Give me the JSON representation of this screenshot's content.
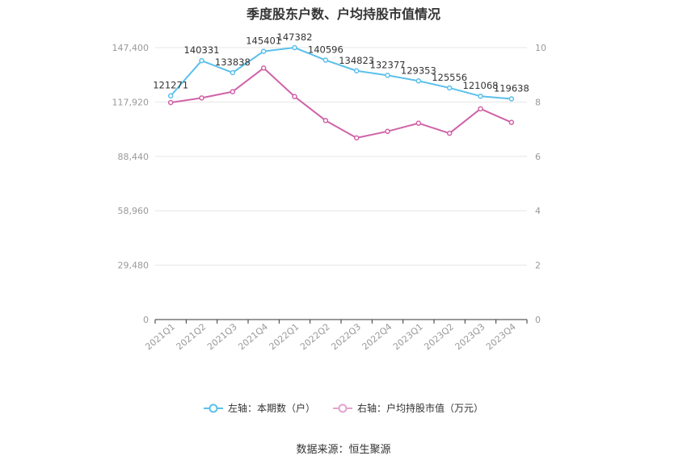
{
  "chart_data": {
    "type": "line",
    "title": "季度股东户数、户均持股市值情况",
    "categories": [
      "2021Q1",
      "2021Q2",
      "2021Q3",
      "2021Q4",
      "2022Q1",
      "2022Q2",
      "2022Q3",
      "2022Q4",
      "2023Q1",
      "2023Q2",
      "2023Q3",
      "2023Q4"
    ],
    "series": [
      {
        "name": "左轴：本期数（户）",
        "axis": "left",
        "color": "#5bc0eb",
        "values": [
          121271,
          140331,
          133838,
          145401,
          147382,
          140596,
          134823,
          132377,
          129353,
          125556,
          121068,
          119638
        ],
        "labels": [
          "121271",
          "140331",
          "133838",
          "145401",
          "147382",
          "140596",
          "134823",
          "132377",
          "129353",
          "125556",
          "121068",
          "119638"
        ]
      },
      {
        "name": "右轴：户均持股市值（万元）",
        "axis": "right",
        "color": "#d063a8",
        "values": [
          7.98,
          8.15,
          8.38,
          9.25,
          8.2,
          7.32,
          6.68,
          6.92,
          7.22,
          6.85,
          7.75,
          7.25
        ]
      }
    ],
    "left_axis": {
      "ylim": [
        0,
        147400
      ],
      "ticks": [
        "0",
        "29,480",
        "58,960",
        "88,440",
        "117,920",
        "147,400"
      ]
    },
    "right_axis": {
      "ylim": [
        0,
        10
      ],
      "ticks": [
        "0",
        "2",
        "4",
        "6",
        "8",
        "10"
      ]
    },
    "grid": true,
    "legend_position": "bottom"
  },
  "legend": {
    "items": [
      {
        "label": "左轴：本期数（户）",
        "color": "#5bc0eb"
      },
      {
        "label": "右轴：户均持股市值（万元）",
        "color": "#e8a0cf"
      }
    ]
  },
  "source": "数据来源：恒生聚源"
}
